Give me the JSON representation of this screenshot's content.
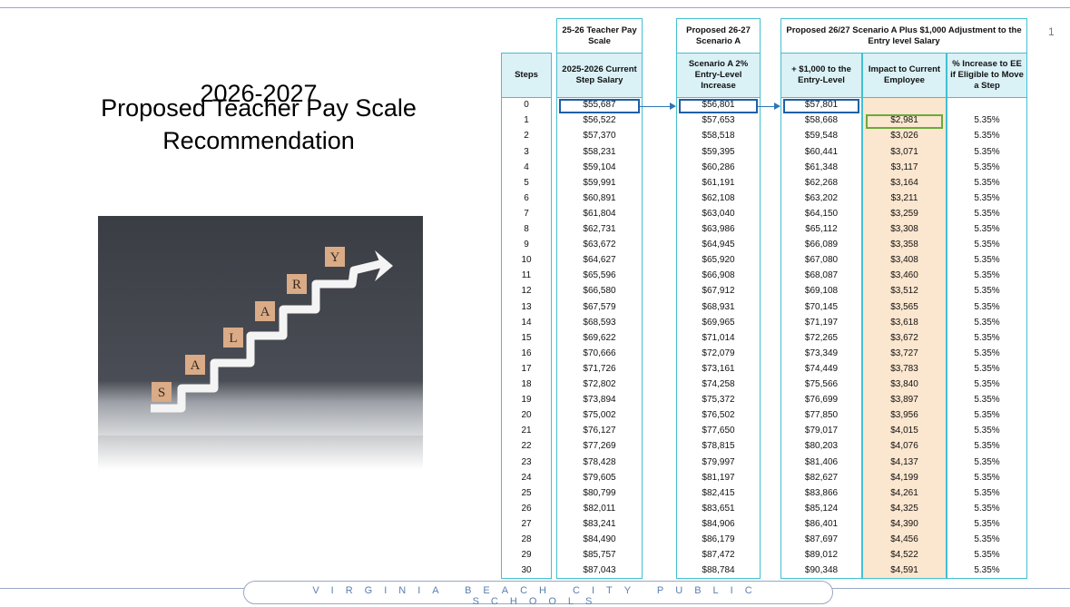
{
  "slide": {
    "title_lines": [
      "2026-2027",
      "Proposed Teacher Pay Scale",
      "Recommendation"
    ],
    "page_number": "1",
    "footer": "VIRGINIA BEACH CITY PUBLIC SCHOOLS"
  },
  "image": {
    "letters": [
      "S",
      "A",
      "L",
      "A",
      "R",
      "Y"
    ]
  },
  "table": {
    "group_headers": [
      "25-26 Teacher Pay Scale",
      "Proposed 26-27 Scenario A",
      "Proposed 26/27 Scenario A Plus $1,000 Adjustment to the Entry level Salary"
    ],
    "column_headers": [
      "Steps",
      "2025-2026 Current Step Salary",
      "Scenario A 2% Entry-Level Increase",
      "+ $1,000 to the Entry-Level",
      "Impact to Current Employee",
      "% Increase to EE if Eligible to Move a Step"
    ],
    "rows": [
      [
        "0",
        "$55,687",
        "$56,801",
        "$57,801",
        null,
        null
      ],
      [
        "1",
        "$56,522",
        "$57,653",
        "$58,668",
        "$2,981",
        "5.35%"
      ],
      [
        "2",
        "$57,370",
        "$58,518",
        "$59,548",
        "$3,026",
        "5.35%"
      ],
      [
        "3",
        "$58,231",
        "$59,395",
        "$60,441",
        "$3,071",
        "5.35%"
      ],
      [
        "4",
        "$59,104",
        "$60,286",
        "$61,348",
        "$3,117",
        "5.35%"
      ],
      [
        "5",
        "$59,991",
        "$61,191",
        "$62,268",
        "$3,164",
        "5.35%"
      ],
      [
        "6",
        "$60,891",
        "$62,108",
        "$63,202",
        "$3,211",
        "5.35%"
      ],
      [
        "7",
        "$61,804",
        "$63,040",
        "$64,150",
        "$3,259",
        "5.35%"
      ],
      [
        "8",
        "$62,731",
        "$63,986",
        "$65,112",
        "$3,308",
        "5.35%"
      ],
      [
        "9",
        "$63,672",
        "$64,945",
        "$66,089",
        "$3,358",
        "5.35%"
      ],
      [
        "10",
        "$64,627",
        "$65,920",
        "$67,080",
        "$3,408",
        "5.35%"
      ],
      [
        "11",
        "$65,596",
        "$66,908",
        "$68,087",
        "$3,460",
        "5.35%"
      ],
      [
        "12",
        "$66,580",
        "$67,912",
        "$69,108",
        "$3,512",
        "5.35%"
      ],
      [
        "13",
        "$67,579",
        "$68,931",
        "$70,145",
        "$3,565",
        "5.35%"
      ],
      [
        "14",
        "$68,593",
        "$69,965",
        "$71,197",
        "$3,618",
        "5.35%"
      ],
      [
        "15",
        "$69,622",
        "$71,014",
        "$72,265",
        "$3,672",
        "5.35%"
      ],
      [
        "16",
        "$70,666",
        "$72,079",
        "$73,349",
        "$3,727",
        "5.35%"
      ],
      [
        "17",
        "$71,726",
        "$73,161",
        "$74,449",
        "$3,783",
        "5.35%"
      ],
      [
        "18",
        "$72,802",
        "$74,258",
        "$75,566",
        "$3,840",
        "5.35%"
      ],
      [
        "19",
        "$73,894",
        "$75,372",
        "$76,699",
        "$3,897",
        "5.35%"
      ],
      [
        "20",
        "$75,002",
        "$76,502",
        "$77,850",
        "$3,956",
        "5.35%"
      ],
      [
        "21",
        "$76,127",
        "$77,650",
        "$79,017",
        "$4,015",
        "5.35%"
      ],
      [
        "22",
        "$77,269",
        "$78,815",
        "$80,203",
        "$4,076",
        "5.35%"
      ],
      [
        "23",
        "$78,428",
        "$79,997",
        "$81,406",
        "$4,137",
        "5.35%"
      ],
      [
        "24",
        "$79,605",
        "$81,197",
        "$82,627",
        "$4,199",
        "5.35%"
      ],
      [
        "25",
        "$80,799",
        "$82,415",
        "$83,866",
        "$4,261",
        "5.35%"
      ],
      [
        "26",
        "$82,011",
        "$83,651",
        "$85,124",
        "$4,325",
        "5.35%"
      ],
      [
        "27",
        "$83,241",
        "$84,906",
        "$86,401",
        "$4,390",
        "5.35%"
      ],
      [
        "28",
        "$84,490",
        "$86,179",
        "$87,697",
        "$4,456",
        "5.35%"
      ],
      [
        "29",
        "$85,757",
        "$87,472",
        "$89,012",
        "$4,522",
        "5.35%"
      ],
      [
        "30",
        "$87,043",
        "$88,784",
        "$90,348",
        "$4,591",
        "5.35%"
      ]
    ]
  }
}
